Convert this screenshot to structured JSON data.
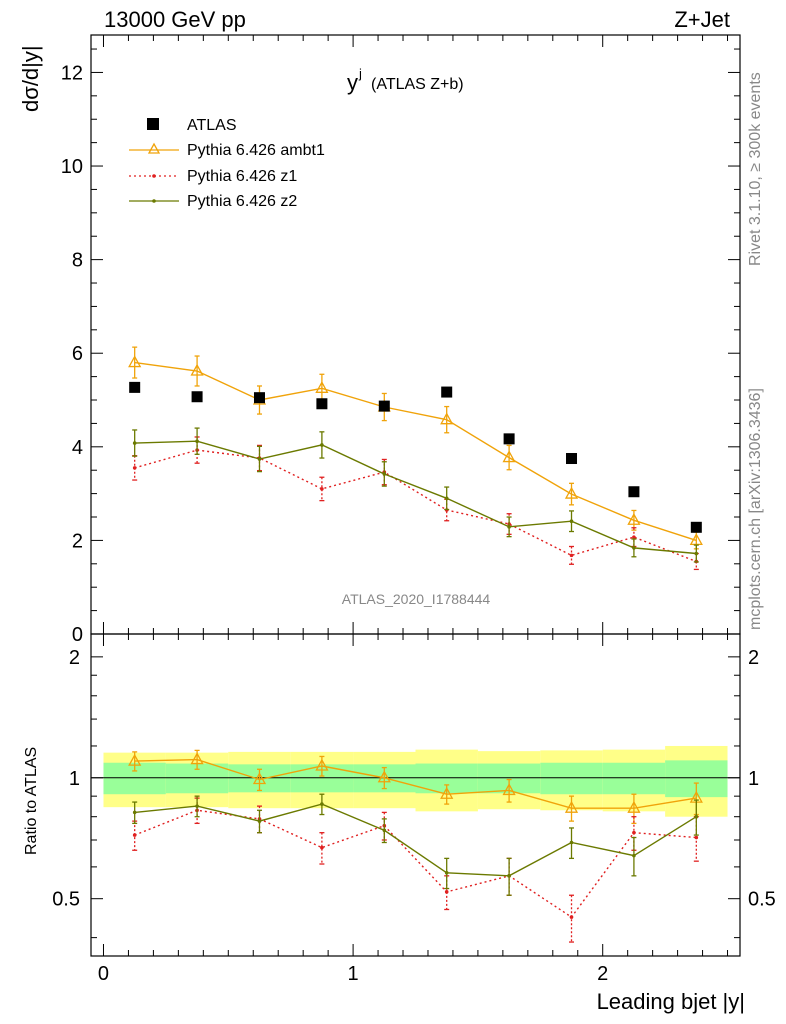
{
  "header": {
    "left": "13000 GeV pp",
    "right": "Z+Jet"
  },
  "side_text": {
    "rivet": "Rivet 3.1.10, ≥ 300k events",
    "mcplots": "mcplots.cern.ch [arXiv:1306.3436]"
  },
  "watermark": "ATLAS_2020_I1788444",
  "chart_data": [
    {
      "type": "scatter",
      "panel": "main",
      "title": {
        "main": "y",
        "sup": "j",
        "note": "(ATLAS Z+b)"
      },
      "ylabel": "dσ/d|y|",
      "xlim": [
        -0.05,
        2.55
      ],
      "ylim": [
        0,
        12.8
      ],
      "yticks": [
        {
          "value": 0,
          "label": "0"
        },
        {
          "value": 2,
          "label": "2"
        },
        {
          "value": 4,
          "label": "4"
        },
        {
          "value": 6,
          "label": "6"
        },
        {
          "value": 8,
          "label": "8"
        },
        {
          "value": 10,
          "label": "10"
        },
        {
          "value": 12,
          "label": "12"
        }
      ],
      "x": [
        0.125,
        0.375,
        0.625,
        0.875,
        1.125,
        1.375,
        1.625,
        1.875,
        2.125,
        2.375
      ],
      "series": [
        {
          "name": "ATLAS",
          "style": "data",
          "color": "#000000",
          "values": [
            5.27,
            5.07,
            5.05,
            4.92,
            4.87,
            5.17,
            4.17,
            3.75,
            3.04,
            2.28
          ]
        },
        {
          "name": "Pythia 6.426 ambt1",
          "style": "triangle",
          "color": "#f0a30a",
          "values": [
            5.8,
            5.62,
            5.0,
            5.25,
            4.85,
            4.58,
            3.77,
            2.99,
            2.43,
            2.0
          ],
          "errors": [
            0.33,
            0.32,
            0.3,
            0.3,
            0.29,
            0.28,
            0.26,
            0.23,
            0.21,
            0.18
          ]
        },
        {
          "name": "Pythia 6.426 z1",
          "style": "dotted",
          "color": "#e02020",
          "values": [
            3.55,
            3.93,
            3.76,
            3.1,
            3.46,
            2.65,
            2.35,
            1.68,
            2.07,
            1.55
          ],
          "errors": [
            0.26,
            0.28,
            0.27,
            0.25,
            0.27,
            0.23,
            0.22,
            0.19,
            0.2,
            0.17
          ]
        },
        {
          "name": "Pythia 6.426 z2",
          "style": "solid",
          "color": "#6b7a00",
          "values": [
            4.08,
            4.12,
            3.74,
            4.04,
            3.42,
            2.9,
            2.29,
            2.41,
            1.84,
            1.72
          ],
          "errors": [
            0.28,
            0.28,
            0.27,
            0.28,
            0.26,
            0.24,
            0.21,
            0.22,
            0.19,
            0.18
          ]
        }
      ],
      "legend": [
        "ATLAS",
        "Pythia 6.426 ambt1",
        "Pythia 6.426 z1",
        "Pythia 6.426 z2"
      ]
    },
    {
      "type": "line",
      "panel": "ratio",
      "ylabel": "Ratio to ATLAS",
      "xlabel": "Leading bjet |y|",
      "xlim": [
        -0.05,
        2.55
      ],
      "ylim": [
        0.36,
        2.28
      ],
      "xticks": [
        {
          "value": 0,
          "label": "0"
        },
        {
          "value": 1,
          "label": "1"
        },
        {
          "value": 2,
          "label": "2"
        }
      ],
      "yticks": [
        {
          "value": 0.5,
          "label": "0.5"
        },
        {
          "value": 1,
          "label": "1"
        },
        {
          "value": 2,
          "label": "2"
        }
      ],
      "bins": [
        0,
        0.25,
        0.5,
        0.75,
        1.0,
        1.25,
        1.5,
        1.75,
        2.0,
        2.25,
        2.5
      ],
      "band_stat": [
        0.09,
        0.085,
        0.08,
        0.08,
        0.08,
        0.085,
        0.085,
        0.09,
        0.09,
        0.105
      ],
      "band_total": [
        0.155,
        0.155,
        0.16,
        0.16,
        0.16,
        0.175,
        0.165,
        0.17,
        0.175,
        0.2
      ],
      "x": [
        0.125,
        0.375,
        0.625,
        0.875,
        1.125,
        1.375,
        1.625,
        1.875,
        2.125,
        2.375
      ],
      "series": [
        {
          "name": "Pythia 6.426 ambt1",
          "color": "#f0a30a",
          "values": [
            1.1,
            1.11,
            0.99,
            1.07,
            1.0,
            0.91,
            0.93,
            0.84,
            0.84,
            0.89
          ],
          "errors": [
            0.06,
            0.06,
            0.06,
            0.06,
            0.06,
            0.05,
            0.06,
            0.06,
            0.07,
            0.08
          ]
        },
        {
          "name": "Pythia 6.426 z1",
          "color": "#e02020",
          "values": [
            0.72,
            0.83,
            0.79,
            0.67,
            0.76,
            0.52,
            0.57,
            0.45,
            0.73,
            0.71
          ],
          "errors": [
            0.06,
            0.06,
            0.06,
            0.06,
            0.06,
            0.05,
            0.06,
            0.06,
            0.07,
            0.09
          ]
        },
        {
          "name": "Pythia 6.426 z2",
          "color": "#6b7a00",
          "values": [
            0.82,
            0.85,
            0.78,
            0.86,
            0.74,
            0.58,
            0.57,
            0.69,
            0.64,
            0.8
          ],
          "errors": [
            0.05,
            0.05,
            0.05,
            0.05,
            0.05,
            0.05,
            0.06,
            0.06,
            0.07,
            0.08
          ]
        }
      ]
    }
  ]
}
